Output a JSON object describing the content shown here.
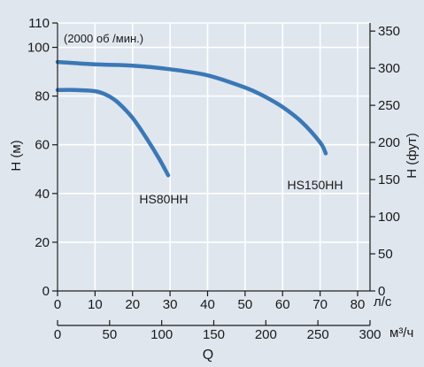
{
  "chart_data": {
    "type": "line",
    "annotation": "(2000 об /мин.)",
    "ylabel_left": "H (м)",
    "ylabel_right": "H (фут)",
    "xlabel": "Q",
    "unit_ls": "л/с",
    "unit_m3h": "м³/ч",
    "y_left": {
      "lim": [
        0,
        110
      ],
      "ticks": [
        0,
        20,
        40,
        60,
        80,
        100,
        110
      ]
    },
    "y_right": {
      "lim": [
        0,
        360.9
      ],
      "ticks": [
        0,
        50,
        100,
        150,
        200,
        250,
        300,
        350
      ]
    },
    "x_ls": {
      "lim": [
        0,
        83.3
      ],
      "ticks": [
        0,
        10,
        20,
        30,
        40,
        50,
        60,
        70,
        80
      ]
    },
    "x_m3h": {
      "lim": [
        0,
        300
      ],
      "ticks": [
        0,
        50,
        100,
        150,
        200,
        250,
        300
      ]
    },
    "grid": true,
    "series": [
      {
        "name": "HS80HH",
        "color": "#3b78b6",
        "x": [
          0,
          5,
          10,
          13,
          16,
          20,
          24,
          27,
          29.5
        ],
        "y": [
          82.5,
          82.5,
          82,
          80.5,
          77.5,
          71,
          62,
          54.5,
          47.5
        ]
      },
      {
        "name": "HS150HH",
        "color": "#3b78b6",
        "x": [
          0,
          10,
          20,
          30,
          40,
          50,
          55,
          60,
          65,
          70,
          71.5
        ],
        "y": [
          94,
          93,
          92.5,
          91,
          88.5,
          83.5,
          80,
          75.5,
          69.5,
          61,
          56.5
        ]
      }
    ]
  }
}
